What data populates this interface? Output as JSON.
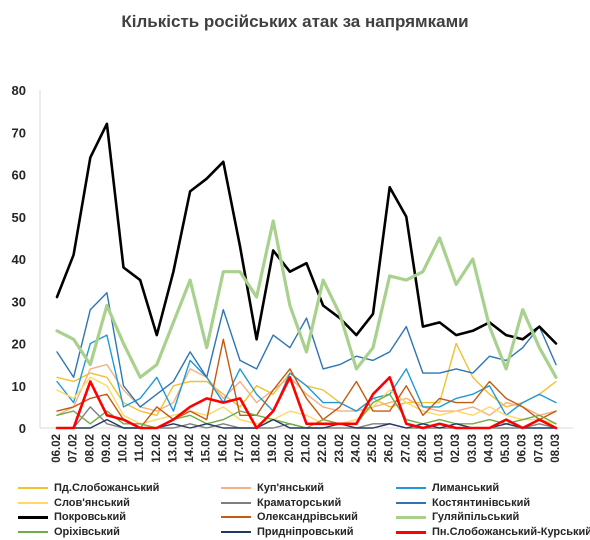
{
  "chart_data": {
    "type": "line",
    "title": "Кількість російських атак за напрямками",
    "xlabel": "",
    "ylabel": "",
    "ylim": [
      0,
      80
    ],
    "yticks": [
      "0",
      "10",
      "20",
      "30",
      "40",
      "50",
      "60",
      "70",
      "80"
    ],
    "grid": false,
    "legend_position": "bottom",
    "x": [
      "06.02",
      "07.02",
      "08.02",
      "09.02",
      "10.02",
      "11.02",
      "12.02",
      "13.02",
      "14.02",
      "15.02",
      "16.02",
      "17.02",
      "18.02",
      "19.02",
      "20.02",
      "21.02",
      "22.02",
      "23.02",
      "24.02",
      "25.02",
      "26.02",
      "27.02",
      "28.02",
      "01.03",
      "02.03",
      "03.03",
      "04.03",
      "05.03",
      "06.03",
      "07.03",
      "08.03"
    ],
    "series": [
      {
        "name": "Пд.Слобожанський",
        "color": "#f2c12e",
        "width": 1.4,
        "values": [
          12,
          11,
          13,
          12,
          6,
          4,
          3,
          10,
          11,
          11,
          8,
          5,
          10,
          8,
          13,
          10,
          9,
          6,
          4,
          7,
          5,
          6,
          6,
          6,
          20,
          12,
          8,
          5,
          6,
          8,
          11
        ]
      },
      {
        "name": "Куп'янський",
        "color": "#f4b183",
        "width": 1.4,
        "values": [
          3,
          5,
          14,
          15,
          9,
          5,
          4,
          6,
          14,
          12,
          7,
          11,
          6,
          9,
          12,
          8,
          5,
          4,
          4,
          5,
          6,
          7,
          5,
          4,
          4,
          5,
          3,
          6,
          5,
          3,
          4
        ]
      },
      {
        "name": "Лиманський",
        "color": "#1f9ad8",
        "width": 1.4,
        "values": [
          11,
          6,
          20,
          22,
          5,
          7,
          12,
          4,
          16,
          12,
          6,
          14,
          8,
          4,
          13,
          10,
          6,
          6,
          4,
          7,
          8,
          14,
          5,
          5,
          7,
          8,
          10,
          3,
          6,
          8,
          6
        ]
      },
      {
        "name": "Слов'янський",
        "color": "#ffd966",
        "width": 1.4,
        "values": [
          9,
          7,
          12,
          10,
          3,
          1,
          2,
          3,
          4,
          3,
          5,
          2,
          1,
          2,
          4,
          3,
          1,
          1,
          2,
          5,
          9,
          6,
          4,
          3,
          4,
          3,
          5,
          3,
          2,
          2,
          1
        ]
      },
      {
        "name": "Краматорський",
        "color": "#7f7f7f",
        "width": 1.4,
        "values": [
          0,
          0,
          5,
          1,
          0,
          0,
          0,
          0,
          1,
          0,
          1,
          0,
          0,
          0,
          1,
          0,
          0,
          0,
          0,
          1,
          1,
          0,
          0,
          0,
          0,
          0,
          0,
          0,
          0,
          1,
          0
        ]
      },
      {
        "name": "Костянтинівський",
        "color": "#2e75b6",
        "width": 1.4,
        "values": [
          18,
          12,
          28,
          32,
          10,
          5,
          8,
          11,
          18,
          12,
          28,
          16,
          14,
          22,
          19,
          26,
          14,
          15,
          17,
          16,
          18,
          24,
          13,
          13,
          14,
          13,
          17,
          16,
          19,
          24,
          15
        ]
      },
      {
        "name": "Покровський",
        "color": "#000000",
        "width": 2.6,
        "values": [
          31,
          41,
          64,
          72,
          38,
          35,
          22,
          37,
          56,
          59,
          63,
          43,
          21,
          42,
          37,
          39,
          29,
          26,
          22,
          27,
          57,
          50,
          24,
          25,
          22,
          23,
          25,
          22,
          21,
          24,
          20
        ]
      },
      {
        "name": "Олександрівський",
        "color": "#c55a11",
        "width": 1.4,
        "values": [
          4,
          5,
          7,
          8,
          2,
          0,
          5,
          2,
          4,
          2,
          21,
          3,
          3,
          9,
          14,
          7,
          2,
          5,
          11,
          4,
          4,
          10,
          3,
          7,
          6,
          6,
          11,
          7,
          5,
          2,
          4
        ]
      },
      {
        "name": "Гуляйпільський",
        "color": "#a9d18e",
        "width": 3.2,
        "values": [
          23,
          21,
          15,
          29,
          20,
          12,
          15,
          25,
          35,
          19,
          37,
          37,
          31,
          49,
          29,
          18,
          35,
          27,
          14,
          19,
          36,
          35,
          37,
          45,
          34,
          40,
          24,
          14,
          28,
          19,
          12
        ]
      },
      {
        "name": "Оріхівський",
        "color": "#70ad47",
        "width": 1.4,
        "values": [
          3,
          4,
          1,
          4,
          1,
          1,
          0,
          2,
          3,
          1,
          2,
          4,
          3,
          2,
          1,
          0,
          2,
          1,
          1,
          6,
          8,
          2,
          1,
          2,
          1,
          1,
          2,
          1,
          2,
          3,
          1
        ]
      },
      {
        "name": "Придніпровський",
        "color": "#203864",
        "width": 1.4,
        "values": [
          0,
          0,
          0,
          2,
          0,
          0,
          0,
          1,
          0,
          1,
          0,
          0,
          0,
          2,
          0,
          0,
          0,
          1,
          0,
          0,
          1,
          0,
          1,
          0,
          1,
          0,
          0,
          1,
          0,
          0,
          0
        ]
      },
      {
        "name": "Пн.Слобожанський-Курський",
        "color": "#ff0000",
        "width": 2.6,
        "values": [
          0,
          0,
          11,
          3,
          2,
          0,
          0,
          2,
          5,
          7,
          6,
          7,
          0,
          4,
          12,
          1,
          1,
          1,
          1,
          8,
          12,
          1,
          0,
          1,
          0,
          0,
          0,
          2,
          0,
          2,
          0
        ]
      }
    ]
  }
}
